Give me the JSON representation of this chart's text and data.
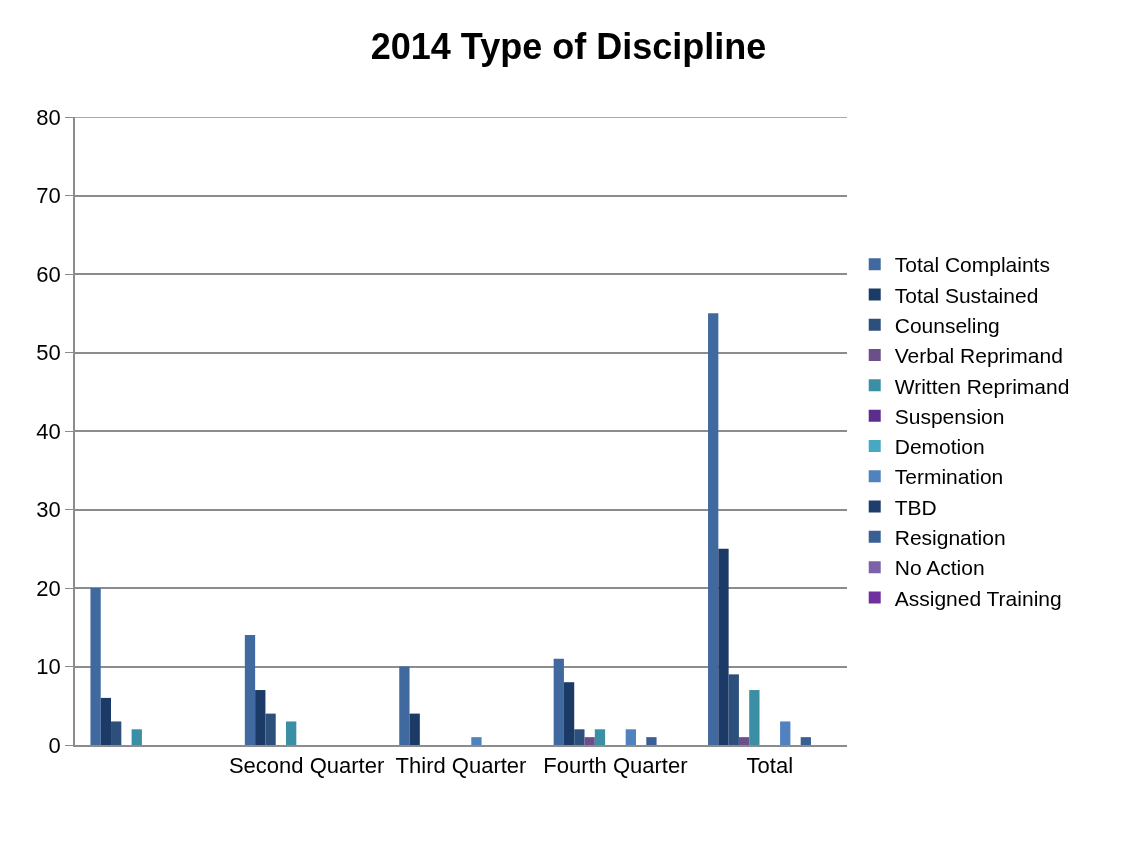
{
  "chart_data": {
    "type": "bar",
    "title": "2014 Type of Discipline",
    "categories": [
      null,
      "Second Quarter",
      "Third Quarter",
      "Fourth Quarter",
      "Total"
    ],
    "series": [
      {
        "name": "Total Complaints",
        "color": "#4069a0",
        "values": [
          20,
          14,
          10,
          11,
          55
        ]
      },
      {
        "name": "Total Sustained",
        "color": "#1b3a66",
        "values": [
          6,
          7,
          4,
          8,
          25
        ]
      },
      {
        "name": "Counseling",
        "color": "#2c4f7c",
        "values": [
          3,
          4,
          0,
          2,
          9
        ]
      },
      {
        "name": "Verbal Reprimand",
        "color": "#6b4f8a",
        "values": [
          0,
          0,
          0,
          1,
          1
        ]
      },
      {
        "name": "Written Reprimand",
        "color": "#3a8fa5",
        "values": [
          2,
          3,
          0,
          2,
          7
        ]
      },
      {
        "name": "Suspension",
        "color": "#5b2d8e",
        "values": [
          0,
          0,
          0,
          0,
          0
        ]
      },
      {
        "name": "Demotion",
        "color": "#47a8c4",
        "values": [
          0,
          0,
          0,
          0,
          0
        ]
      },
      {
        "name": "Termination",
        "color": "#5082c0",
        "values": [
          0,
          0,
          1,
          2,
          3
        ]
      },
      {
        "name": "TBD",
        "color": "#1f3d6b",
        "values": [
          0,
          0,
          0,
          0,
          0
        ]
      },
      {
        "name": "Resignation",
        "color": "#3a5f95",
        "values": [
          0,
          0,
          0,
          1,
          1
        ]
      },
      {
        "name": "No Action",
        "color": "#7d62a8",
        "values": [
          0,
          0,
          0,
          0,
          0
        ]
      },
      {
        "name": "Assigned Training",
        "color": "#7030a0",
        "values": [
          0,
          0,
          0,
          0,
          0
        ]
      }
    ],
    "ylim": [
      0,
      80
    ],
    "yticks": [
      0,
      10,
      20,
      30,
      40,
      50,
      60,
      70,
      80
    ],
    "grid": "y",
    "legend": "right"
  }
}
